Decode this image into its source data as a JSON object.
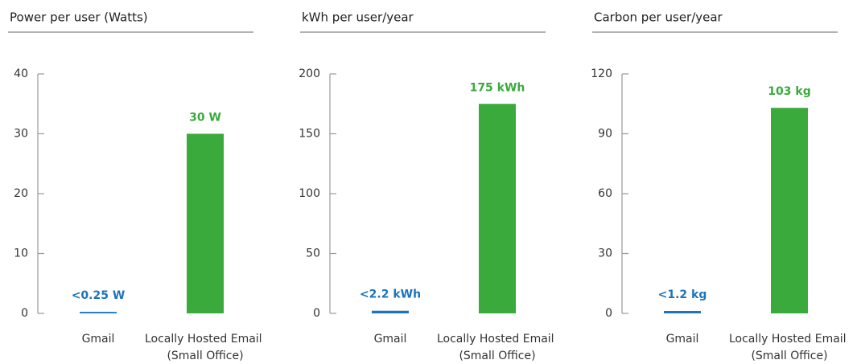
{
  "chart_data": [
    {
      "type": "bar",
      "title": "Power per user (Watts)",
      "categories": [
        "Gmail",
        "Locally Hosted Email (Small Office)"
      ],
      "values": [
        0.25,
        30
      ],
      "value_labels": [
        "<0.25 W",
        "30 W"
      ],
      "colors": [
        "#1b75bb",
        "#3aaa3c"
      ],
      "ylim": [
        0,
        40
      ],
      "yticks": [
        0,
        10,
        20,
        30,
        40
      ]
    },
    {
      "type": "bar",
      "title": "kWh per user/year",
      "categories": [
        "Gmail",
        "Locally Hosted Email (Small Office)"
      ],
      "values": [
        2.2,
        175
      ],
      "value_labels": [
        "<2.2 kWh",
        "175 kWh"
      ],
      "colors": [
        "#1b75bb",
        "#3aaa3c"
      ],
      "ylim": [
        0,
        200
      ],
      "yticks": [
        0,
        50,
        100,
        150,
        200
      ]
    },
    {
      "type": "bar",
      "title": "Carbon per user/year",
      "categories": [
        "Gmail",
        "Locally Hosted Email (Small Office)"
      ],
      "values": [
        1.2,
        103
      ],
      "value_labels": [
        "<1.2 kg",
        "103 kg"
      ],
      "colors": [
        "#1b75bb",
        "#3aaa3c"
      ],
      "ylim": [
        0,
        120
      ],
      "yticks": [
        0,
        30,
        60,
        90,
        120
      ]
    }
  ]
}
